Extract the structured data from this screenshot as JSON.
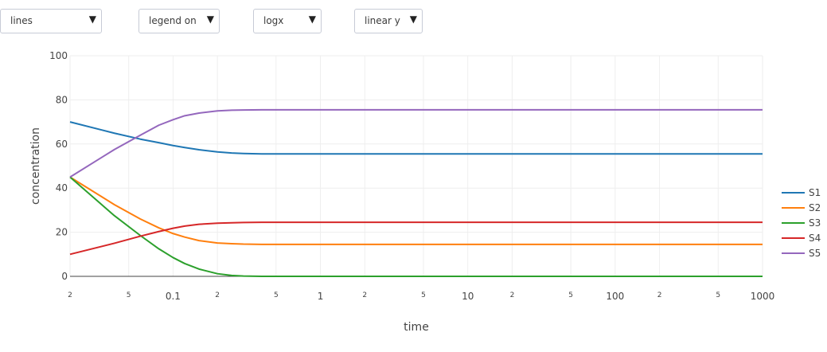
{
  "controls": [
    {
      "label": "lines"
    },
    {
      "label": "legend on"
    },
    {
      "label": "logx"
    },
    {
      "label": "linear y"
    }
  ],
  "chart_data": {
    "type": "line",
    "xlabel": "time",
    "ylabel": "concentration",
    "xscale": "log",
    "xlim": [
      0.02,
      1000
    ],
    "ylim": [
      0,
      100
    ],
    "grid": true,
    "legend": "right",
    "x_ticks": [
      {
        "v": 0.02,
        "label": "2",
        "major": false
      },
      {
        "v": 0.05,
        "label": "5",
        "major": false
      },
      {
        "v": 0.1,
        "label": "0.1",
        "major": true
      },
      {
        "v": 0.2,
        "label": "2",
        "major": false
      },
      {
        "v": 0.5,
        "label": "5",
        "major": false
      },
      {
        "v": 1,
        "label": "1",
        "major": true
      },
      {
        "v": 2,
        "label": "2",
        "major": false
      },
      {
        "v": 5,
        "label": "5",
        "major": false
      },
      {
        "v": 10,
        "label": "10",
        "major": true
      },
      {
        "v": 20,
        "label": "2",
        "major": false
      },
      {
        "v": 50,
        "label": "5",
        "major": false
      },
      {
        "v": 100,
        "label": "100",
        "major": true
      },
      {
        "v": 200,
        "label": "2",
        "major": false
      },
      {
        "v": 500,
        "label": "5",
        "major": false
      },
      {
        "v": 1000,
        "label": "1000",
        "major": true
      }
    ],
    "y_ticks": [
      0,
      20,
      40,
      60,
      80,
      100
    ],
    "x": [
      0.02,
      0.04,
      0.06,
      0.08,
      0.1,
      0.12,
      0.15,
      0.2,
      0.25,
      0.3,
      0.4,
      0.5,
      0.7,
      1,
      2,
      5,
      10,
      20,
      50,
      100,
      200,
      500,
      1000
    ],
    "series": [
      {
        "name": "S1",
        "color": "#1f77b4",
        "values": [
          70,
          64.9,
          62.2,
          60.6,
          59.3,
          58.4,
          57.4,
          56.4,
          55.9,
          55.7,
          55.5,
          55.5,
          55.5,
          55.5,
          55.5,
          55.5,
          55.5,
          55.5,
          55.5,
          55.5,
          55.5,
          55.5,
          55.5
        ]
      },
      {
        "name": "S2",
        "color": "#ff7f0e",
        "values": [
          45,
          32.5,
          26,
          22,
          19.4,
          17.8,
          16.2,
          15.1,
          14.8,
          14.6,
          14.5,
          14.5,
          14.5,
          14.5,
          14.5,
          14.5,
          14.5,
          14.5,
          14.5,
          14.5,
          14.5,
          14.5,
          14.5
        ]
      },
      {
        "name": "S3",
        "color": "#2ca02c",
        "values": [
          45,
          27.5,
          18.5,
          12.5,
          8.5,
          5.8,
          3.3,
          1.2,
          0.4,
          0.15,
          0.02,
          0,
          0,
          0,
          0,
          0,
          0,
          0,
          0,
          0,
          0,
          0,
          0
        ]
      },
      {
        "name": "S4",
        "color": "#d62728",
        "values": [
          10,
          15,
          18.2,
          20.3,
          21.8,
          22.8,
          23.6,
          24.1,
          24.3,
          24.4,
          24.5,
          24.5,
          24.5,
          24.5,
          24.5,
          24.5,
          24.5,
          24.5,
          24.5,
          24.5,
          24.5,
          24.5,
          24.5
        ]
      },
      {
        "name": "S5",
        "color": "#9467bd",
        "values": [
          45,
          57.5,
          64,
          68.5,
          71,
          72.8,
          74,
          75,
          75.3,
          75.4,
          75.5,
          75.5,
          75.5,
          75.5,
          75.5,
          75.5,
          75.5,
          75.5,
          75.5,
          75.5,
          75.5,
          75.5,
          75.5
        ]
      }
    ]
  }
}
